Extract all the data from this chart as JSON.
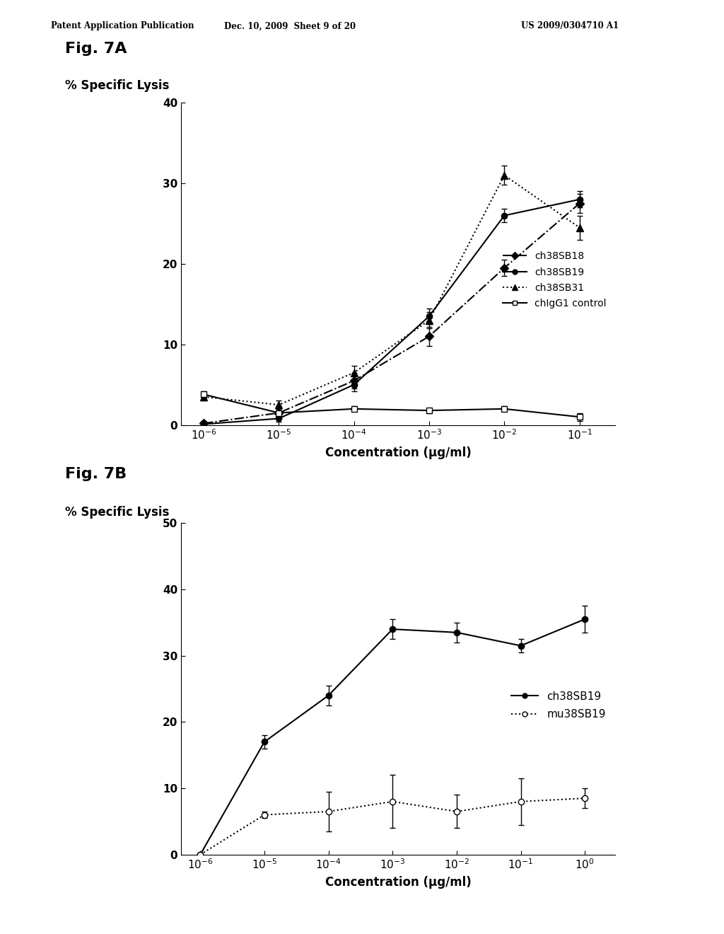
{
  "header_left": "Patent Application Publication",
  "header_center": "Dec. 10, 2009  Sheet 9 of 20",
  "header_right": "US 2009/0304710 A1",
  "fig7a": {
    "title": "Fig. 7A",
    "ylabel": "% Specific Lysis",
    "xlabel": "Concentration (μg/ml)",
    "ylim": [
      0,
      40
    ],
    "yticks": [
      0,
      10,
      20,
      30,
      40
    ],
    "x_values": [
      1e-06,
      1e-05,
      0.0001,
      0.001,
      0.01,
      0.1
    ],
    "series": {
      "ch38SB18": {
        "y": [
          0.2,
          1.5,
          5.5,
          11.0,
          19.5,
          27.5
        ],
        "yerr": [
          0.3,
          0.5,
          1.0,
          1.2,
          1.0,
          1.2
        ],
        "color": "black",
        "linestyle": "-.",
        "marker": "D",
        "markersize": 6,
        "markerfacecolor": "black",
        "label": "ch38SB18"
      },
      "ch38SB19": {
        "y": [
          0.1,
          0.8,
          5.0,
          13.5,
          26.0,
          28.0
        ],
        "yerr": [
          0.2,
          0.4,
          0.8,
          1.0,
          0.8,
          1.0
        ],
        "color": "black",
        "linestyle": "-",
        "marker": "o",
        "markersize": 6,
        "markerfacecolor": "black",
        "label": "ch38SB19"
      },
      "ch38SB31": {
        "y": [
          3.5,
          2.5,
          6.5,
          13.0,
          31.0,
          24.5
        ],
        "yerr": [
          0.5,
          0.5,
          0.8,
          1.0,
          1.2,
          1.5
        ],
        "color": "black",
        "linestyle": ":",
        "marker": "^",
        "markersize": 7,
        "markerfacecolor": "black",
        "label": "ch38SB31"
      },
      "chIgG1": {
        "y": [
          3.8,
          1.5,
          2.0,
          1.8,
          2.0,
          1.0
        ],
        "yerr": [
          0.4,
          0.3,
          0.3,
          0.3,
          0.3,
          0.5
        ],
        "color": "black",
        "linestyle": "-",
        "marker": "s",
        "markersize": 6,
        "markerfacecolor": "white",
        "label": "chIgG1 control"
      }
    }
  },
  "fig7b": {
    "title": "Fig. 7B",
    "ylabel": "% Specific Lysis",
    "xlabel": "Concentration (μg/ml)",
    "ylim": [
      0,
      50
    ],
    "yticks": [
      0,
      10,
      20,
      30,
      40,
      50
    ],
    "x_values": [
      1e-06,
      1e-05,
      0.0001,
      0.001,
      0.01,
      0.1,
      1.0
    ],
    "series": {
      "ch38SB19": {
        "y": [
          0.0,
          17.0,
          24.0,
          34.0,
          33.5,
          31.5,
          35.5
        ],
        "yerr": [
          0.2,
          1.0,
          1.5,
          1.5,
          1.5,
          1.0,
          2.0
        ],
        "color": "black",
        "linestyle": "-",
        "marker": "o",
        "markersize": 6,
        "markerfacecolor": "black",
        "label": "ch38SB19"
      },
      "mu38SB19": {
        "y": [
          0.0,
          6.0,
          6.5,
          8.0,
          6.5,
          8.0,
          8.5
        ],
        "yerr": [
          0.2,
          0.5,
          3.0,
          4.0,
          2.5,
          3.5,
          1.5
        ],
        "color": "black",
        "linestyle": ":",
        "marker": "o",
        "markersize": 6,
        "markerfacecolor": "white",
        "label": "mu38SB19"
      }
    }
  }
}
